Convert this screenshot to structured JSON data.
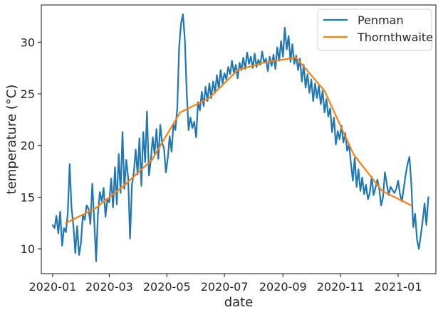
{
  "chart_data": {
    "type": "line",
    "title": "",
    "xlabel": "date",
    "ylabel": "temperature (°C)",
    "xlim": [
      "2019-12-20",
      "2021-02-10"
    ],
    "ylim": [
      7.6,
      33.6
    ],
    "grid": false,
    "legend_position": "top-right",
    "xticks": [
      "2020-01",
      "2020-03",
      "2020-05",
      "2020-07",
      "2020-09",
      "2020-11",
      "2021-01"
    ],
    "yticks": [
      10,
      15,
      20,
      25,
      30
    ],
    "series": [
      {
        "name": "Penman",
        "color": "#1f77b4",
        "points": [
          [
            "2020-01-01",
            12.3
          ],
          [
            "2020-01-03",
            12.0
          ],
          [
            "2020-01-05",
            13.2
          ],
          [
            "2020-01-07",
            11.5
          ],
          [
            "2020-01-09",
            13.6
          ],
          [
            "2020-01-11",
            10.3
          ],
          [
            "2020-01-13",
            12.0
          ],
          [
            "2020-01-15",
            11.6
          ],
          [
            "2020-01-17",
            13.4
          ],
          [
            "2020-01-19",
            18.2
          ],
          [
            "2020-01-21",
            14.0
          ],
          [
            "2020-01-23",
            12.2
          ],
          [
            "2020-01-25",
            9.6
          ],
          [
            "2020-01-27",
            12.2
          ],
          [
            "2020-01-29",
            9.4
          ],
          [
            "2020-01-31",
            10.6
          ],
          [
            "2020-02-02",
            13.3
          ],
          [
            "2020-02-04",
            12.8
          ],
          [
            "2020-02-06",
            14.2
          ],
          [
            "2020-02-08",
            13.9
          ],
          [
            "2020-02-10",
            12.4
          ],
          [
            "2020-02-12",
            16.3
          ],
          [
            "2020-02-14",
            12.9
          ],
          [
            "2020-02-16",
            8.8
          ],
          [
            "2020-02-18",
            13.4
          ],
          [
            "2020-02-20",
            15.5
          ],
          [
            "2020-02-22",
            14.6
          ],
          [
            "2020-02-24",
            15.9
          ],
          [
            "2020-02-26",
            13.1
          ],
          [
            "2020-02-28",
            14.8
          ],
          [
            "2020-03-01",
            14.5
          ],
          [
            "2020-03-03",
            16.8
          ],
          [
            "2020-03-05",
            14.0
          ],
          [
            "2020-03-07",
            17.9
          ],
          [
            "2020-03-09",
            14.3
          ],
          [
            "2020-03-11",
            19.2
          ],
          [
            "2020-03-13",
            15.4
          ],
          [
            "2020-03-15",
            21.3
          ],
          [
            "2020-03-17",
            15.8
          ],
          [
            "2020-03-19",
            18.6
          ],
          [
            "2020-03-21",
            16.9
          ],
          [
            "2020-03-23",
            11.0
          ],
          [
            "2020-03-25",
            16.2
          ],
          [
            "2020-03-27",
            17.4
          ],
          [
            "2020-03-29",
            19.6
          ],
          [
            "2020-03-31",
            17.2
          ],
          [
            "2020-04-02",
            20.7
          ],
          [
            "2020-04-04",
            16.1
          ],
          [
            "2020-04-06",
            21.3
          ],
          [
            "2020-04-08",
            18.4
          ],
          [
            "2020-04-10",
            23.3
          ],
          [
            "2020-04-12",
            17.1
          ],
          [
            "2020-04-14",
            18.5
          ],
          [
            "2020-04-16",
            20.8
          ],
          [
            "2020-04-18",
            19.2
          ],
          [
            "2020-04-20",
            21.6
          ],
          [
            "2020-04-22",
            18.7
          ],
          [
            "2020-04-24",
            22.0
          ],
          [
            "2020-04-26",
            20.3
          ],
          [
            "2020-04-28",
            19.7
          ],
          [
            "2020-04-30",
            17.4
          ],
          [
            "2020-05-02",
            18.8
          ],
          [
            "2020-05-04",
            20.9
          ],
          [
            "2020-05-06",
            19.4
          ],
          [
            "2020-05-08",
            22.1
          ],
          [
            "2020-05-10",
            21.5
          ],
          [
            "2020-05-12",
            23.6
          ],
          [
            "2020-05-14",
            29.5
          ],
          [
            "2020-05-16",
            31.8
          ],
          [
            "2020-05-18",
            32.7
          ],
          [
            "2020-05-20",
            30.3
          ],
          [
            "2020-05-22",
            25.2
          ],
          [
            "2020-05-24",
            21.5
          ],
          [
            "2020-05-26",
            22.7
          ],
          [
            "2020-05-28",
            21.7
          ],
          [
            "2020-05-30",
            22.3
          ],
          [
            "2020-06-01",
            20.8
          ],
          [
            "2020-06-03",
            24.2
          ],
          [
            "2020-06-05",
            23.4
          ],
          [
            "2020-06-07",
            25.2
          ],
          [
            "2020-06-09",
            23.8
          ],
          [
            "2020-06-11",
            25.7
          ],
          [
            "2020-06-13",
            24.3
          ],
          [
            "2020-06-15",
            26.0
          ],
          [
            "2020-06-17",
            24.6
          ],
          [
            "2020-06-19",
            26.2
          ],
          [
            "2020-06-21",
            25.1
          ],
          [
            "2020-06-23",
            26.8
          ],
          [
            "2020-06-25",
            25.5
          ],
          [
            "2020-06-27",
            27.3
          ],
          [
            "2020-06-29",
            26.0
          ],
          [
            "2020-07-01",
            27.0
          ],
          [
            "2020-07-03",
            26.4
          ],
          [
            "2020-07-05",
            27.6
          ],
          [
            "2020-07-07",
            26.9
          ],
          [
            "2020-07-09",
            28.2
          ],
          [
            "2020-07-11",
            27.0
          ],
          [
            "2020-07-13",
            27.8
          ],
          [
            "2020-07-15",
            26.5
          ],
          [
            "2020-07-17",
            28.0
          ],
          [
            "2020-07-19",
            27.3
          ],
          [
            "2020-07-21",
            28.5
          ],
          [
            "2020-07-23",
            27.4
          ],
          [
            "2020-07-25",
            29.0
          ],
          [
            "2020-07-27",
            27.9
          ],
          [
            "2020-07-29",
            28.6
          ],
          [
            "2020-07-31",
            27.5
          ],
          [
            "2020-08-02",
            28.9
          ],
          [
            "2020-08-04",
            27.6
          ],
          [
            "2020-08-06",
            28.3
          ],
          [
            "2020-08-08",
            27.8
          ],
          [
            "2020-08-10",
            29.1
          ],
          [
            "2020-08-12",
            28.0
          ],
          [
            "2020-08-14",
            28.4
          ],
          [
            "2020-08-16",
            27.2
          ],
          [
            "2020-08-18",
            28.6
          ],
          [
            "2020-08-20",
            27.7
          ],
          [
            "2020-08-22",
            28.8
          ],
          [
            "2020-08-24",
            27.4
          ],
          [
            "2020-08-26",
            29.5
          ],
          [
            "2020-08-28",
            28.2
          ],
          [
            "2020-08-30",
            30.1
          ],
          [
            "2020-09-01",
            28.6
          ],
          [
            "2020-09-03",
            31.4
          ],
          [
            "2020-09-05",
            29.3
          ],
          [
            "2020-09-07",
            30.6
          ],
          [
            "2020-09-09",
            28.1
          ],
          [
            "2020-09-11",
            29.8
          ],
          [
            "2020-09-13",
            27.9
          ],
          [
            "2020-09-15",
            28.7
          ],
          [
            "2020-09-17",
            27.3
          ],
          [
            "2020-09-19",
            28.4
          ],
          [
            "2020-09-21",
            26.2
          ],
          [
            "2020-09-23",
            27.8
          ],
          [
            "2020-09-25",
            25.6
          ],
          [
            "2020-09-27",
            26.9
          ],
          [
            "2020-09-29",
            25.1
          ],
          [
            "2020-10-01",
            26.4
          ],
          [
            "2020-10-03",
            24.3
          ],
          [
            "2020-10-05",
            26.0
          ],
          [
            "2020-10-07",
            24.6
          ],
          [
            "2020-10-09",
            25.8
          ],
          [
            "2020-10-11",
            24.0
          ],
          [
            "2020-10-13",
            25.3
          ],
          [
            "2020-10-15",
            23.2
          ],
          [
            "2020-10-17",
            24.5
          ],
          [
            "2020-10-19",
            22.8
          ],
          [
            "2020-10-21",
            23.6
          ],
          [
            "2020-10-23",
            21.3
          ],
          [
            "2020-10-25",
            22.7
          ],
          [
            "2020-10-27",
            20.1
          ],
          [
            "2020-10-29",
            21.4
          ],
          [
            "2020-10-31",
            20.6
          ],
          [
            "2020-11-02",
            21.9
          ],
          [
            "2020-11-04",
            20.3
          ],
          [
            "2020-11-06",
            21.2
          ],
          [
            "2020-11-08",
            19.5
          ],
          [
            "2020-11-10",
            20.1
          ],
          [
            "2020-11-12",
            18.3
          ],
          [
            "2020-11-14",
            16.6
          ],
          [
            "2020-11-16",
            18.8
          ],
          [
            "2020-11-18",
            16.0
          ],
          [
            "2020-11-20",
            17.7
          ],
          [
            "2020-11-22",
            15.6
          ],
          [
            "2020-11-24",
            16.9
          ],
          [
            "2020-11-26",
            15.3
          ],
          [
            "2020-11-28",
            16.2
          ],
          [
            "2020-11-30",
            14.8
          ],
          [
            "2020-12-02",
            15.4
          ],
          [
            "2020-12-04",
            17.0
          ],
          [
            "2020-12-06",
            15.2
          ],
          [
            "2020-12-08",
            15.9
          ],
          [
            "2020-12-10",
            16.7
          ],
          [
            "2020-12-12",
            15.8
          ],
          [
            "2020-12-14",
            14.2
          ],
          [
            "2020-12-16",
            15.0
          ],
          [
            "2020-12-18",
            17.4
          ],
          [
            "2020-12-20",
            16.3
          ],
          [
            "2020-12-22",
            15.2
          ],
          [
            "2020-12-24",
            16.0
          ],
          [
            "2020-12-26",
            15.7
          ],
          [
            "2020-12-28",
            15.4
          ],
          [
            "2020-12-30",
            15.8
          ],
          [
            "2021-01-01",
            16.6
          ],
          [
            "2021-01-03",
            15.3
          ],
          [
            "2021-01-05",
            14.6
          ],
          [
            "2021-01-07",
            15.9
          ],
          [
            "2021-01-09",
            17.2
          ],
          [
            "2021-01-11",
            18.2
          ],
          [
            "2021-01-13",
            18.9
          ],
          [
            "2021-01-15",
            16.3
          ],
          [
            "2021-01-17",
            12.1
          ],
          [
            "2021-01-19",
            13.4
          ],
          [
            "2021-01-21",
            10.9
          ],
          [
            "2021-01-23",
            10.0
          ],
          [
            "2021-01-25",
            11.3
          ],
          [
            "2021-01-27",
            12.7
          ],
          [
            "2021-01-29",
            14.4
          ],
          [
            "2021-01-31",
            12.3
          ],
          [
            "2021-02-02",
            15.0
          ]
        ]
      },
      {
        "name": "Thornthwaite",
        "color": "#ff7f0e",
        "points": [
          [
            "2020-01-15",
            12.5
          ],
          [
            "2020-02-15",
            13.9
          ],
          [
            "2020-03-15",
            16.0
          ],
          [
            "2020-04-15",
            18.6
          ],
          [
            "2020-05-15",
            23.2
          ],
          [
            "2020-06-15",
            24.6
          ],
          [
            "2020-07-15",
            27.3
          ],
          [
            "2020-08-15",
            28.1
          ],
          [
            "2020-09-15",
            28.5
          ],
          [
            "2020-10-15",
            25.3
          ],
          [
            "2020-11-15",
            19.1
          ],
          [
            "2020-12-15",
            15.6
          ],
          [
            "2021-01-15",
            14.2
          ]
        ]
      }
    ]
  }
}
